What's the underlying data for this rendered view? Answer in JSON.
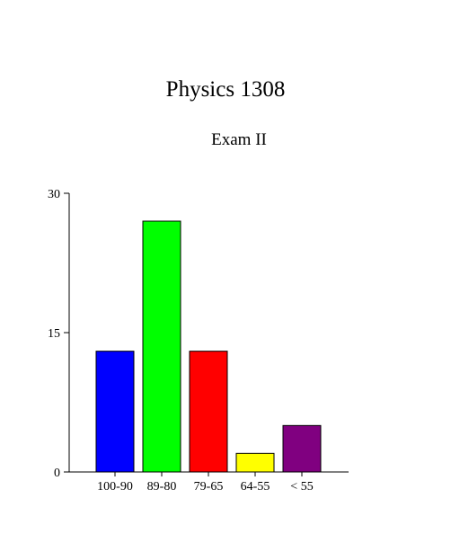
{
  "chart_data": {
    "type": "bar",
    "title": "Physics 1308",
    "subtitle": "Exam II",
    "xlabel": "",
    "ylabel": "",
    "categories": [
      "100-90",
      "89-80",
      "79-65",
      "64-55",
      "< 55"
    ],
    "values": [
      13,
      27,
      13,
      2,
      5
    ],
    "colors": [
      "#0000ff",
      "#00ff00",
      "#ff0000",
      "#ffff00",
      "#800080"
    ],
    "ylim": [
      0,
      30
    ],
    "yticks": [
      0,
      15,
      30
    ],
    "grid": false
  }
}
